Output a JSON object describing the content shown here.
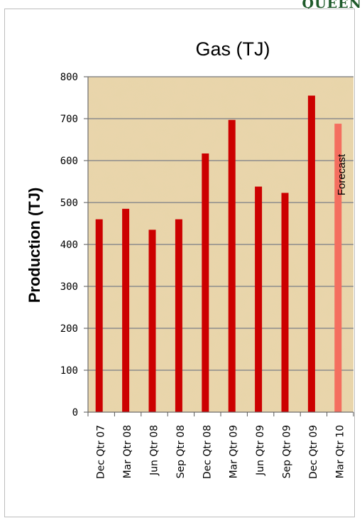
{
  "brand": {
    "partial_text": "QUEEN"
  },
  "colors": {
    "bar": "#cc0000",
    "forecast_bar": "#f46e5f",
    "plot_bg": "#e9d5ac",
    "gridline": "#8c8c8c",
    "brand": "#1e5a2a"
  },
  "chart_data": {
    "type": "bar",
    "title": "Gas (TJ)",
    "xlabel": "",
    "ylabel": "Production (TJ)",
    "ylim": [
      0,
      800
    ],
    "yticks": [
      0,
      100,
      200,
      300,
      400,
      500,
      600,
      700,
      800
    ],
    "grid": true,
    "categories": [
      "Dec Qtr 07",
      "Mar Qtr 08",
      "Jun Qtr 08",
      "Sep Qtr 08",
      "Dec Qtr 08",
      "Mar Qtr 09",
      "Jun Qtr 09",
      "Sep Qtr 09",
      "Dec Qtr 09",
      "Mar Qtr 10"
    ],
    "values": [
      460,
      485,
      435,
      460,
      617,
      697,
      538,
      523,
      755,
      688
    ],
    "forecast_index": 9,
    "annotation": "Forecast"
  }
}
